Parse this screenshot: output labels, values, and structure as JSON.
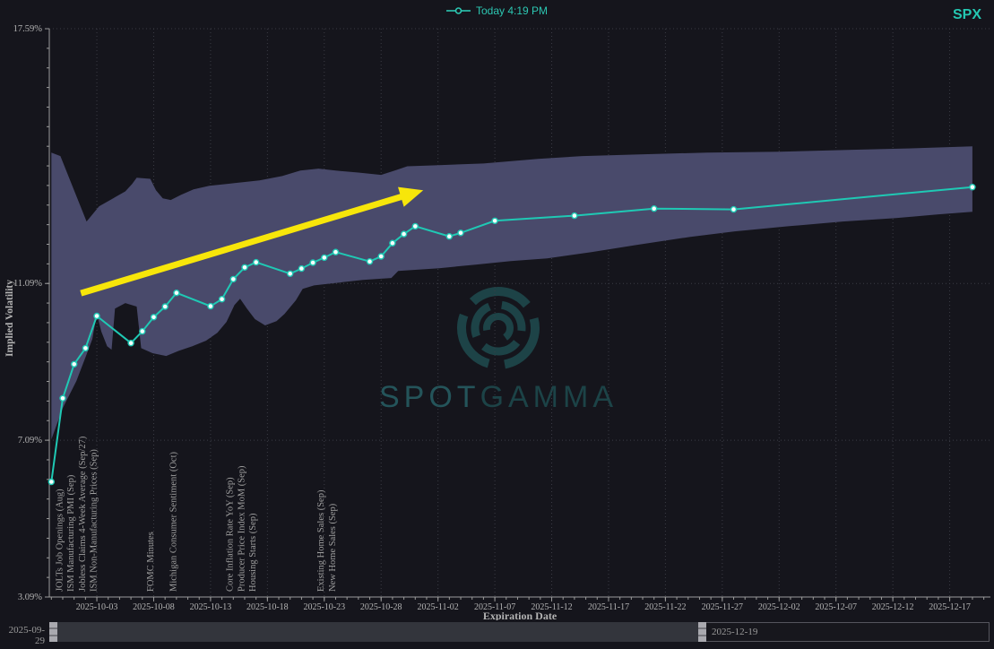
{
  "header": {
    "legend": {
      "label": "Today 4:19 PM"
    },
    "symbol": "SPX"
  },
  "watermark": {
    "brand_spot": "SPOT",
    "brand_gamma": "GAMMA",
    "logo_color": "#1d4347",
    "spot_color": "#24545a",
    "gamma_color": "#1c4347"
  },
  "axes": {
    "y": {
      "title": "Implied Volatility",
      "ticks": [
        {
          "label": "17.59%",
          "value": 17.59
        },
        {
          "label": "11.09%",
          "value": 11.09
        },
        {
          "label": "7.09%",
          "value": 7.09
        },
        {
          "label": "3.09%",
          "value": 3.09
        }
      ]
    },
    "x": {
      "title": "Expiration Date",
      "ticks": [
        {
          "label": "2025-10-03",
          "day": 4
        },
        {
          "label": "2025-10-08",
          "day": 9
        },
        {
          "label": "2025-10-13",
          "day": 14
        },
        {
          "label": "2025-10-18",
          "day": 19
        },
        {
          "label": "2025-10-23",
          "day": 24
        },
        {
          "label": "2025-10-28",
          "day": 29
        },
        {
          "label": "2025-11-02",
          "day": 34
        },
        {
          "label": "2025-11-07",
          "day": 39
        },
        {
          "label": "2025-11-12",
          "day": 44
        },
        {
          "label": "2025-11-17",
          "day": 49
        },
        {
          "label": "2025-11-22",
          "day": 54
        },
        {
          "label": "2025-11-27",
          "day": 59
        },
        {
          "label": "2025-12-02",
          "day": 64
        },
        {
          "label": "2025-12-07",
          "day": 69
        },
        {
          "label": "2025-12-12",
          "day": 74
        },
        {
          "label": "2025-12-17",
          "day": 79
        }
      ]
    }
  },
  "events": [
    {
      "label": "JOLTs Job Openings (Aug)",
      "day": 1
    },
    {
      "label": "ISM Manufacturing PMI (Sep)",
      "day": 2
    },
    {
      "label": "Jobless Claims 4-Week Average (Sep/27)",
      "day": 3
    },
    {
      "label": "ISM Non-Manufacturing Prices (Sep)",
      "day": 4
    },
    {
      "label": "FOMC Minutes",
      "day": 9
    },
    {
      "label": "Michigan Consumer Sentiment (Oct)",
      "day": 11
    },
    {
      "label": "Core Inflation Rate YoY (Sep)",
      "day": 16
    },
    {
      "label": "Producer Price Index MoM (Sep)",
      "day": 17
    },
    {
      "label": "Housing Starts (Sep)",
      "day": 18
    },
    {
      "label": "Existing Home Sales (Sep)",
      "day": 24
    },
    {
      "label": "New Home Sales (Sep)",
      "day": 25
    }
  ],
  "slider": {
    "start_label": "2025-09-29",
    "end_label": "2025-12-19"
  },
  "chart_data": {
    "type": "line",
    "title": "",
    "xlabel": "Expiration Date",
    "ylabel": "Implied Volatility",
    "ylim": [
      3.09,
      17.59
    ],
    "x_range": [
      "2025-09-29",
      "2025-12-19"
    ],
    "grid": true,
    "legend_position": "top-center",
    "series": [
      {
        "name": "Today 4:19 PM",
        "color": "#1fc9b4",
        "marker_fill": "#f6fffd",
        "points": [
          {
            "date": "2025-09-29",
            "day": 0,
            "iv": 6.03
          },
          {
            "date": "2025-09-30",
            "day": 1,
            "iv": 8.16
          },
          {
            "date": "2025-10-01",
            "day": 2,
            "iv": 9.03
          },
          {
            "date": "2025-10-02",
            "day": 3,
            "iv": 9.44
          },
          {
            "date": "2025-10-03",
            "day": 4,
            "iv": 10.26
          },
          {
            "date": "2025-10-06",
            "day": 7,
            "iv": 9.57
          },
          {
            "date": "2025-10-07",
            "day": 8,
            "iv": 9.87
          },
          {
            "date": "2025-10-08",
            "day": 9,
            "iv": 10.23
          },
          {
            "date": "2025-10-09",
            "day": 10,
            "iv": 10.5
          },
          {
            "date": "2025-10-10",
            "day": 11,
            "iv": 10.85
          },
          {
            "date": "2025-10-13",
            "day": 14,
            "iv": 10.51
          },
          {
            "date": "2025-10-14",
            "day": 15,
            "iv": 10.69
          },
          {
            "date": "2025-10-15",
            "day": 16,
            "iv": 11.2
          },
          {
            "date": "2025-10-16",
            "day": 17,
            "iv": 11.5
          },
          {
            "date": "2025-10-17",
            "day": 18,
            "iv": 11.63
          },
          {
            "date": "2025-10-20",
            "day": 21,
            "iv": 11.34
          },
          {
            "date": "2025-10-21",
            "day": 22,
            "iv": 11.47
          },
          {
            "date": "2025-10-22",
            "day": 23,
            "iv": 11.62
          },
          {
            "date": "2025-10-23",
            "day": 24,
            "iv": 11.75
          },
          {
            "date": "2025-10-24",
            "day": 25,
            "iv": 11.89
          },
          {
            "date": "2025-10-27",
            "day": 28,
            "iv": 11.65
          },
          {
            "date": "2025-10-28",
            "day": 29,
            "iv": 11.78
          },
          {
            "date": "2025-10-29",
            "day": 30,
            "iv": 12.12
          },
          {
            "date": "2025-10-30",
            "day": 31,
            "iv": 12.35
          },
          {
            "date": "2025-10-31",
            "day": 32,
            "iv": 12.55
          },
          {
            "date": "2025-11-03",
            "day": 35,
            "iv": 12.29
          },
          {
            "date": "2025-11-04",
            "day": 36,
            "iv": 12.38
          },
          {
            "date": "2025-11-07",
            "day": 39,
            "iv": 12.69
          },
          {
            "date": "2025-11-14",
            "day": 46,
            "iv": 12.82
          },
          {
            "date": "2025-11-21",
            "day": 53,
            "iv": 13.0
          },
          {
            "date": "2025-11-28",
            "day": 60,
            "iv": 12.98
          },
          {
            "date": "2025-12-19",
            "day": 81,
            "iv": 13.55
          }
        ]
      }
    ],
    "band": {
      "name": "IV range band",
      "color": "#494a6b",
      "upper": [
        [
          0,
          14.43
        ],
        [
          0.8,
          14.34
        ],
        [
          3.1,
          12.67
        ],
        [
          4.2,
          13.06
        ],
        [
          5.3,
          13.24
        ],
        [
          6.5,
          13.44
        ],
        [
          7.1,
          13.63
        ],
        [
          7.5,
          13.79
        ],
        [
          8.7,
          13.76
        ],
        [
          9.2,
          13.47
        ],
        [
          9.8,
          13.26
        ],
        [
          10.5,
          13.22
        ],
        [
          11.4,
          13.35
        ],
        [
          12.5,
          13.49
        ],
        [
          13.9,
          13.58
        ],
        [
          16.1,
          13.65
        ],
        [
          18.3,
          13.72
        ],
        [
          20.3,
          13.83
        ],
        [
          21.9,
          13.97
        ],
        [
          23.5,
          14.02
        ],
        [
          25,
          13.97
        ],
        [
          27,
          13.92
        ],
        [
          29,
          13.86
        ],
        [
          30.2,
          13.97
        ],
        [
          31.3,
          14.08
        ],
        [
          34.1,
          14.11
        ],
        [
          38,
          14.15
        ],
        [
          42.8,
          14.27
        ],
        [
          46.7,
          14.34
        ],
        [
          51.4,
          14.38
        ],
        [
          57.7,
          14.43
        ],
        [
          64.1,
          14.45
        ],
        [
          70.4,
          14.5
        ],
        [
          75.9,
          14.54
        ],
        [
          81,
          14.59
        ]
      ],
      "lower": [
        [
          0,
          7.11
        ],
        [
          1,
          7.91
        ],
        [
          2.2,
          8.6
        ],
        [
          3.1,
          9.28
        ],
        [
          3.6,
          9.67
        ],
        [
          4,
          10.31
        ],
        [
          4.4,
          9.86
        ],
        [
          4.9,
          9.49
        ],
        [
          5.3,
          9.4
        ],
        [
          5.6,
          10.45
        ],
        [
          6.5,
          10.59
        ],
        [
          7.5,
          10.5
        ],
        [
          7.9,
          9.44
        ],
        [
          8.9,
          9.31
        ],
        [
          10.1,
          9.24
        ],
        [
          11.2,
          9.37
        ],
        [
          12.4,
          9.49
        ],
        [
          13.6,
          9.63
        ],
        [
          14.6,
          9.83
        ],
        [
          15.4,
          10.11
        ],
        [
          16.1,
          10.54
        ],
        [
          16.6,
          10.7
        ],
        [
          17.2,
          10.45
        ],
        [
          17.9,
          10.18
        ],
        [
          18.8,
          10.02
        ],
        [
          19.8,
          10.13
        ],
        [
          20.5,
          10.31
        ],
        [
          21.5,
          10.66
        ],
        [
          22.1,
          10.95
        ],
        [
          23.1,
          11.04
        ],
        [
          24.6,
          11.09
        ],
        [
          27.4,
          11.18
        ],
        [
          29.9,
          11.23
        ],
        [
          30.5,
          11.41
        ],
        [
          34.1,
          11.48
        ],
        [
          37.3,
          11.57
        ],
        [
          40.4,
          11.66
        ],
        [
          43.6,
          11.73
        ],
        [
          47.5,
          11.89
        ],
        [
          51.4,
          12.07
        ],
        [
          56.2,
          12.28
        ],
        [
          60.1,
          12.42
        ],
        [
          64.8,
          12.55
        ],
        [
          69.6,
          12.67
        ],
        [
          74.3,
          12.76
        ],
        [
          77.9,
          12.85
        ],
        [
          81,
          12.92
        ]
      ]
    },
    "annotations": [
      {
        "type": "arrow",
        "color": "#f7e60a",
        "from": {
          "day": 2.6,
          "iv": 10.84
        },
        "to": {
          "day": 32.7,
          "iv": 13.47
        }
      }
    ]
  },
  "style": {
    "background": "#15151c",
    "grid_color": "#3b3c45",
    "axis_color": "#9b9b9b",
    "tick_label_color": "#b4b4b4",
    "event_label_color": "#9e9e9e",
    "accent_teal": "#24c7b1"
  }
}
